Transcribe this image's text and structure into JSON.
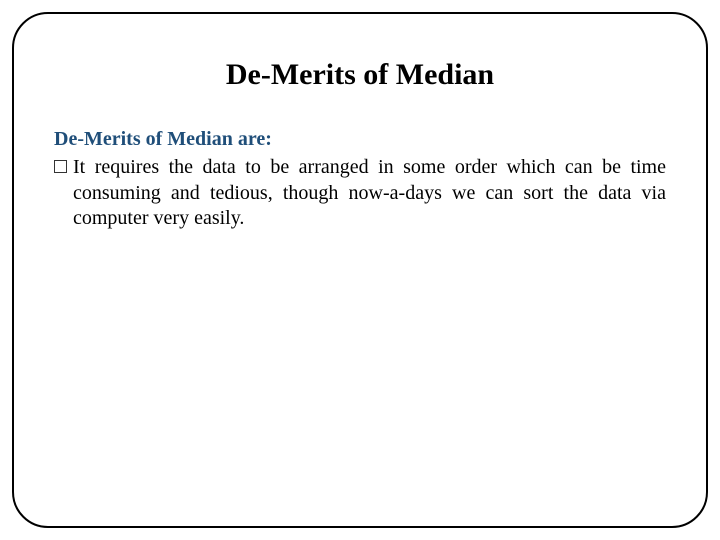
{
  "slide": {
    "title": "De-Merits of Median",
    "subheading": "De-Merits of Median are:",
    "bullet_text": "It requires the data to be arranged in some order which can be time consuming and tedious, though now-a-days we can sort the data via computer very easily.",
    "colors": {
      "frame_border": "#000000",
      "title_color": "#000000",
      "subheading_color": "#1f4e79",
      "body_text_color": "#000000",
      "background": "#ffffff"
    },
    "typography": {
      "title_fontsize": 30,
      "subheading_fontsize": 20,
      "body_fontsize": 20,
      "font_family": "Times New Roman"
    },
    "layout": {
      "frame_border_radius": 36,
      "frame_border_width": 2
    }
  }
}
